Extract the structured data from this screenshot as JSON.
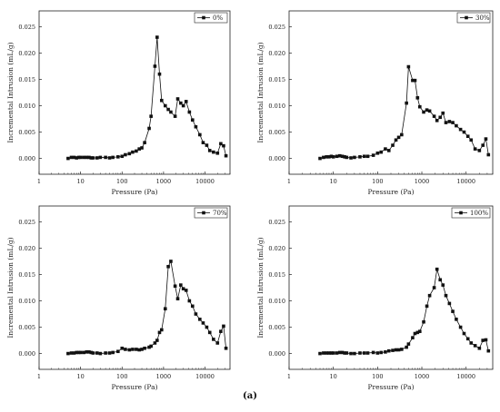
{
  "figure": {
    "caption": "(a)"
  },
  "chart_data": [
    {
      "type": "line",
      "xscale": "log",
      "xlim": [
        1,
        40000
      ],
      "ylim": [
        -0.003,
        0.028
      ],
      "xticks": [
        1,
        10,
        100,
        1000,
        10000
      ],
      "xtick_labels": [
        "1",
        "10",
        "100",
        "1000",
        "10000"
      ],
      "yticks": [
        0.0,
        0.005,
        0.01,
        0.015,
        0.02,
        0.025
      ],
      "ytick_labels": [
        "0.000",
        "0.005",
        "0.010",
        "0.015",
        "0.020",
        "0.025"
      ],
      "xlabel": "Pressure (Pa)",
      "ylabel": "Incremental Intrusion (mL/g)",
      "legend_position": "top-right",
      "series": [
        {
          "name": "0%",
          "x": [
            5,
            6,
            7,
            8,
            9,
            10,
            12,
            14,
            16,
            18,
            20,
            25,
            30,
            40,
            50,
            60,
            80,
            100,
            120,
            150,
            180,
            220,
            260,
            300,
            350,
            450,
            500,
            620,
            700,
            800,
            900,
            1100,
            1300,
            1500,
            1900,
            2200,
            2600,
            3000,
            3500,
            4200,
            5000,
            6000,
            7500,
            9000,
            11000,
            13000,
            16000,
            20000,
            24000,
            28000,
            32000
          ],
          "y": [
            0.0,
            0.0002,
            0.0002,
            0.0001,
            0.0002,
            0.0002,
            0.0002,
            0.0002,
            0.0002,
            0.0001,
            0.0001,
            0.0001,
            0.0002,
            0.0002,
            0.0001,
            0.0002,
            0.0003,
            0.0004,
            0.0007,
            0.0009,
            0.0012,
            0.0014,
            0.0018,
            0.002,
            0.003,
            0.0057,
            0.008,
            0.0175,
            0.023,
            0.016,
            0.011,
            0.01,
            0.0093,
            0.0088,
            0.008,
            0.0113,
            0.0105,
            0.01,
            0.0108,
            0.0088,
            0.0073,
            0.006,
            0.0045,
            0.003,
            0.0025,
            0.0015,
            0.0012,
            0.001,
            0.0028,
            0.0024,
            0.0005
          ]
        },
        {
          "name": "30%",
          "x": [
            5,
            6,
            7,
            8,
            9,
            10,
            12,
            14,
            16,
            18,
            20,
            25,
            30,
            40,
            50,
            60,
            80,
            100,
            120,
            150,
            180,
            220,
            260,
            300,
            350,
            450,
            500,
            620,
            700,
            800,
            900,
            1100,
            1300,
            1500,
            1900,
            2200,
            2600,
            3000,
            3500,
            4200,
            5000,
            6000,
            7500,
            9000,
            11000,
            13000,
            16000,
            20000,
            24000,
            28000,
            32000
          ],
          "y": [
            0.0,
            0.0002,
            0.0003,
            0.0003,
            0.0004,
            0.0003,
            0.0004,
            0.0005,
            0.0004,
            0.0003,
            0.0002,
            0.0001,
            0.0002,
            0.0003,
            0.0004,
            0.0004,
            0.0006,
            0.001,
            0.0012,
            0.0018,
            0.0015,
            0.0025,
            0.0035,
            0.004,
            0.0045,
            0.0105,
            0.0174,
            0.0148,
            0.0148,
            0.0115,
            0.0098,
            0.0088,
            0.0092,
            0.009,
            0.008,
            0.0072,
            0.0078,
            0.0086,
            0.0068,
            0.007,
            0.0068,
            0.0062,
            0.0055,
            0.005,
            0.0042,
            0.0035,
            0.0018,
            0.0015,
            0.0025,
            0.0037,
            0.0007
          ]
        },
        {
          "name": "70%",
          "x": [
            5,
            6,
            7,
            8,
            9,
            10,
            12,
            14,
            16,
            18,
            20,
            25,
            30,
            40,
            50,
            60,
            80,
            100,
            120,
            150,
            180,
            220,
            260,
            300,
            350,
            450,
            500,
            620,
            700,
            800,
            900,
            1100,
            1300,
            1500,
            1900,
            2200,
            2600,
            3000,
            3500,
            4200,
            5000,
            6000,
            7500,
            9000,
            11000,
            13000,
            16000,
            20000,
            24000,
            28000,
            32000
          ],
          "y": [
            0.0,
            0.0001,
            0.0001,
            0.0002,
            0.0002,
            0.0002,
            0.0002,
            0.0003,
            0.0003,
            0.0002,
            0.0001,
            0.0001,
            0.0,
            0.0001,
            0.0001,
            0.0002,
            0.0004,
            0.001,
            0.0008,
            0.0007,
            0.0008,
            0.0008,
            0.0007,
            0.0008,
            0.001,
            0.0012,
            0.0014,
            0.002,
            0.0025,
            0.004,
            0.0045,
            0.0085,
            0.0165,
            0.0175,
            0.0128,
            0.0104,
            0.013,
            0.0123,
            0.012,
            0.01,
            0.009,
            0.0075,
            0.0065,
            0.0058,
            0.005,
            0.004,
            0.0027,
            0.002,
            0.0042,
            0.0052,
            0.001
          ]
        },
        {
          "name": "100%",
          "x": [
            5,
            6,
            7,
            8,
            9,
            10,
            12,
            14,
            16,
            18,
            20,
            25,
            30,
            40,
            50,
            60,
            80,
            100,
            120,
            150,
            180,
            220,
            260,
            300,
            350,
            450,
            500,
            620,
            700,
            800,
            900,
            1100,
            1300,
            1500,
            1900,
            2200,
            2600,
            3000,
            3500,
            4200,
            5000,
            6000,
            7500,
            9000,
            11000,
            13000,
            16000,
            20000,
            24000,
            28000,
            32000
          ],
          "y": [
            0.0,
            0.0001,
            0.0001,
            0.0001,
            0.0001,
            0.0001,
            0.0001,
            0.0002,
            0.0002,
            0.0001,
            0.0001,
            0.0,
            0.0,
            0.0001,
            0.0001,
            0.0001,
            0.0002,
            0.0001,
            0.0002,
            0.0003,
            0.0005,
            0.0006,
            0.0007,
            0.0007,
            0.0008,
            0.0012,
            0.0018,
            0.003,
            0.0038,
            0.004,
            0.0042,
            0.006,
            0.009,
            0.011,
            0.0125,
            0.016,
            0.014,
            0.013,
            0.011,
            0.0095,
            0.008,
            0.0065,
            0.005,
            0.0038,
            0.0028,
            0.002,
            0.0015,
            0.001,
            0.0025,
            0.0026,
            0.0005
          ]
        }
      ]
    }
  ]
}
